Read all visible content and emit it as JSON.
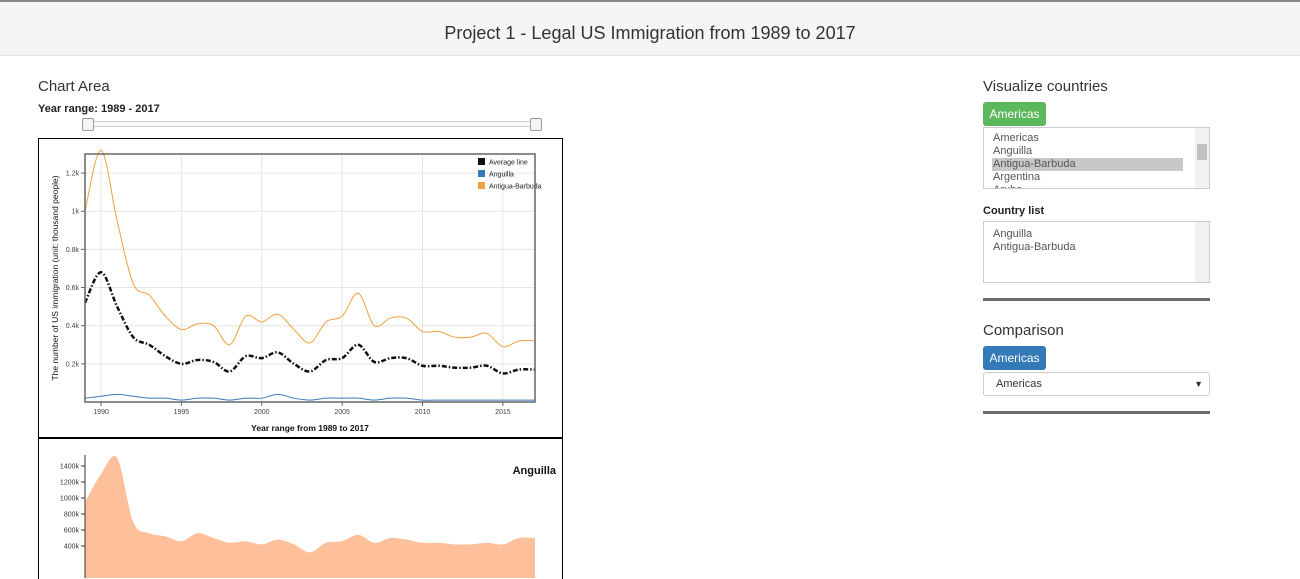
{
  "header": {
    "title": "Project 1 - Legal US Immigration from 1989 to 2017"
  },
  "chart_area": {
    "heading": "Chart Area",
    "year_range_label": "Year range: 1989 - 2017"
  },
  "chart_data": [
    {
      "type": "line",
      "x_label": "Year range from 1989 to 2017",
      "y_label": "The number of US immigration (unit: thousand people)",
      "x": [
        1989,
        1990,
        1991,
        1992,
        1993,
        1994,
        1995,
        1996,
        1997,
        1998,
        1999,
        2000,
        2001,
        2002,
        2003,
        2004,
        2005,
        2006,
        2007,
        2008,
        2009,
        2010,
        2011,
        2012,
        2013,
        2014,
        2015,
        2016,
        2017
      ],
      "xlim": [
        1989,
        2017
      ],
      "xticks": [
        1990,
        1995,
        2000,
        2005,
        2010,
        2015
      ],
      "ylim": [
        0,
        1.3
      ],
      "yticks": [
        {
          "value": 0.2,
          "label": "0.2k"
        },
        {
          "value": 0.4,
          "label": "0.4k"
        },
        {
          "value": 0.6,
          "label": "0.6k"
        },
        {
          "value": 0.8,
          "label": "0.8k"
        },
        {
          "value": 1,
          "label": "1k"
        },
        {
          "value": 1.2,
          "label": "1.2k"
        }
      ],
      "grid": true,
      "legend": "top-right",
      "series": [
        {
          "name": "Average line",
          "color": "#111111",
          "line_style": "dash-dot",
          "values": [
            0.52,
            0.68,
            0.5,
            0.34,
            0.3,
            0.24,
            0.2,
            0.22,
            0.21,
            0.16,
            0.24,
            0.23,
            0.26,
            0.2,
            0.16,
            0.22,
            0.23,
            0.3,
            0.21,
            0.23,
            0.23,
            0.19,
            0.19,
            0.18,
            0.18,
            0.19,
            0.15,
            0.17,
            0.17
          ]
        },
        {
          "name": "Anguilla",
          "color": "#3a7ab8",
          "line_style": "solid",
          "values": [
            0.02,
            0.03,
            0.04,
            0.03,
            0.02,
            0.02,
            0.01,
            0.02,
            0.02,
            0.01,
            0.02,
            0.02,
            0.04,
            0.02,
            0.01,
            0.02,
            0.02,
            0.02,
            0.01,
            0.02,
            0.02,
            0.01,
            0.01,
            0.01,
            0.01,
            0.01,
            0.01,
            0.01,
            0.01
          ]
        },
        {
          "name": "Antigua-Barbuda",
          "color": "#f0a040",
          "line_style": "solid",
          "values": [
            1.0,
            1.32,
            0.95,
            0.62,
            0.56,
            0.45,
            0.38,
            0.41,
            0.4,
            0.3,
            0.45,
            0.42,
            0.46,
            0.38,
            0.31,
            0.42,
            0.45,
            0.57,
            0.4,
            0.44,
            0.44,
            0.37,
            0.37,
            0.34,
            0.34,
            0.36,
            0.29,
            0.32,
            0.32
          ]
        }
      ]
    },
    {
      "type": "area",
      "title": "Anguilla",
      "x": [
        1989,
        1990,
        1991,
        1992,
        1993,
        1994,
        1995,
        1996,
        1997,
        1998,
        1999,
        2000,
        2001,
        2002,
        2003,
        2004,
        2005,
        2006,
        2007,
        2008,
        2009,
        2010,
        2011,
        2012,
        2013,
        2014,
        2015,
        2016,
        2017
      ],
      "xlim": [
        1989,
        2017
      ],
      "ylim": [
        0,
        1500
      ],
      "yticks": [
        {
          "value": 400,
          "label": "400k"
        },
        {
          "value": 600,
          "label": "600k"
        },
        {
          "value": 800,
          "label": "800k"
        },
        {
          "value": 1000,
          "label": "1000k"
        },
        {
          "value": 1200,
          "label": "1200k"
        },
        {
          "value": 1400,
          "label": "1400k"
        }
      ],
      "color": "#fdc09a",
      "values": [
        950,
        1300,
        1500,
        700,
        560,
        520,
        460,
        560,
        500,
        440,
        460,
        420,
        480,
        420,
        320,
        440,
        460,
        540,
        440,
        500,
        480,
        440,
        440,
        420,
        420,
        440,
        420,
        500,
        500
      ]
    }
  ],
  "sidebar": {
    "visualize": {
      "heading": "Visualize countries",
      "button": "Americas",
      "options": [
        "Americas",
        "Anguilla",
        "Antigua-Barbuda",
        "Argentina",
        "Aruba"
      ],
      "selected_index": 2
    },
    "country_list": {
      "heading": "Country list",
      "items": [
        "Anguilla",
        "Antigua-Barbuda"
      ]
    },
    "comparison": {
      "heading": "Comparison",
      "button": "Americas",
      "select": "Americas"
    }
  }
}
